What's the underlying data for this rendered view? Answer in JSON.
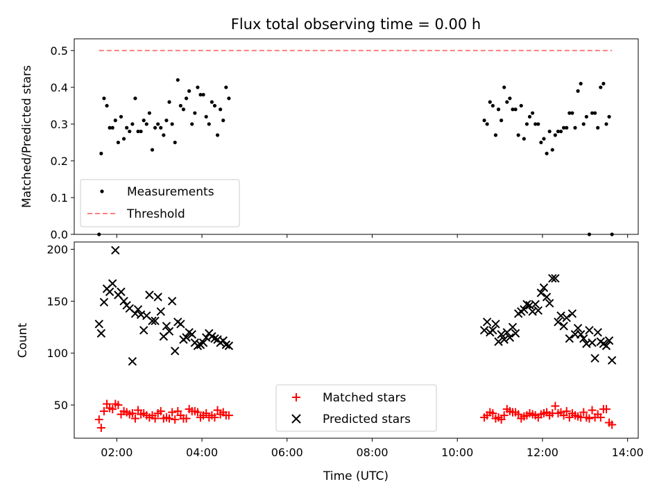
{
  "title": "Flux total observing time = 0.00 h",
  "colors": {
    "matched": "#ff0000",
    "predicted": "#000000",
    "threshold": "#ff7f7f",
    "measurements": "#000000"
  },
  "chart_data": [
    {
      "type": "scatter",
      "title": "Flux total observing time = 0.00 h",
      "ylabel": "Matched/Predicted stars",
      "xlabel": "",
      "xlim": [
        "01:00",
        "14:15"
      ],
      "ylim": [
        0,
        0.5
      ],
      "yticks": [
        "0.0",
        "0.1",
        "0.2",
        "0.3",
        "0.4",
        "0.5"
      ],
      "x_tick_labels_shown": false,
      "legend_position": "lower-left",
      "series": [
        {
          "name": "Measurements",
          "marker": "dot",
          "x": [
            "01:35",
            "01:38",
            "01:42",
            "01:46",
            "01:50",
            "01:54",
            "01:58",
            "02:02",
            "02:06",
            "02:10",
            "02:14",
            "02:18",
            "02:22",
            "02:26",
            "02:30",
            "02:34",
            "02:38",
            "02:42",
            "02:46",
            "02:50",
            "02:54",
            "02:58",
            "03:02",
            "03:06",
            "03:10",
            "03:14",
            "03:18",
            "03:22",
            "03:26",
            "03:30",
            "03:34",
            "03:38",
            "03:42",
            "03:46",
            "03:50",
            "03:54",
            "03:58",
            "04:02",
            "04:06",
            "04:10",
            "04:14",
            "04:18",
            "04:22",
            "04:26",
            "04:30",
            "04:34",
            "04:38",
            "10:38",
            "10:42",
            "10:46",
            "10:50",
            "10:54",
            "10:58",
            "11:02",
            "11:06",
            "11:10",
            "11:14",
            "11:18",
            "11:22",
            "11:26",
            "11:30",
            "11:34",
            "11:38",
            "11:42",
            "11:46",
            "11:50",
            "11:54",
            "11:58",
            "12:02",
            "12:06",
            "12:10",
            "12:14",
            "12:18",
            "12:22",
            "12:26",
            "12:30",
            "12:34",
            "12:38",
            "12:42",
            "12:46",
            "12:50",
            "12:54",
            "12:58",
            "13:02",
            "13:06",
            "13:10",
            "13:14",
            "13:18",
            "13:22",
            "13:26",
            "13:30",
            "13:34",
            "13:38"
          ],
          "values": [
            0.0,
            0.22,
            0.37,
            0.35,
            0.29,
            0.29,
            0.31,
            0.25,
            0.32,
            0.26,
            0.29,
            0.28,
            0.3,
            0.37,
            0.28,
            0.28,
            0.31,
            0.3,
            0.33,
            0.23,
            0.29,
            0.3,
            0.29,
            0.27,
            0.31,
            0.36,
            0.3,
            0.25,
            0.42,
            0.35,
            0.34,
            0.37,
            0.39,
            0.3,
            0.33,
            0.4,
            0.38,
            0.38,
            0.32,
            0.3,
            0.36,
            0.35,
            0.27,
            0.34,
            0.31,
            0.4,
            0.37,
            0.31,
            0.3,
            0.36,
            0.35,
            0.27,
            0.34,
            0.31,
            0.4,
            0.36,
            0.37,
            0.34,
            0.34,
            0.27,
            0.35,
            0.26,
            0.3,
            0.32,
            0.33,
            0.3,
            0.3,
            0.25,
            0.26,
            0.22,
            0.28,
            0.23,
            0.27,
            0.28,
            0.28,
            0.29,
            0.29,
            0.33,
            0.33,
            0.29,
            0.39,
            0.41,
            0.3,
            0.32,
            0.0,
            0.33,
            0.33,
            0.29,
            0.4,
            0.41,
            0.3,
            0.32,
            0.0
          ]
        },
        {
          "name": "Threshold",
          "marker": "dashed-line",
          "x": [
            "01:35",
            "13:38"
          ],
          "values": [
            0.5,
            0.5
          ]
        }
      ]
    },
    {
      "type": "scatter",
      "ylabel": "Count",
      "xlabel": "Time (UTC)",
      "xlim": [
        "01:00",
        "14:15"
      ],
      "ylim": [
        18,
        207
      ],
      "yticks": [
        "50",
        "100",
        "150",
        "200"
      ],
      "xticks": [
        "02:00",
        "04:00",
        "06:00",
        "08:00",
        "10:00",
        "12:00",
        "14:00"
      ],
      "legend_position": "lower-center",
      "series": [
        {
          "name": "Matched stars",
          "marker": "plus",
          "x": [
            "01:35",
            "01:38",
            "01:42",
            "01:46",
            "01:50",
            "01:54",
            "01:58",
            "02:02",
            "02:06",
            "02:10",
            "02:14",
            "02:18",
            "02:22",
            "02:26",
            "02:30",
            "02:34",
            "02:38",
            "02:42",
            "02:46",
            "02:50",
            "02:54",
            "02:58",
            "03:02",
            "03:06",
            "03:10",
            "03:14",
            "03:18",
            "03:22",
            "03:26",
            "03:30",
            "03:34",
            "03:38",
            "03:42",
            "03:46",
            "03:50",
            "03:54",
            "03:58",
            "04:02",
            "04:06",
            "04:10",
            "04:14",
            "04:18",
            "04:22",
            "04:26",
            "04:30",
            "04:34",
            "04:38",
            "10:38",
            "10:42",
            "10:46",
            "10:50",
            "10:54",
            "10:58",
            "11:02",
            "11:06",
            "11:10",
            "11:14",
            "11:18",
            "11:22",
            "11:26",
            "11:30",
            "11:34",
            "11:38",
            "11:42",
            "11:46",
            "11:50",
            "11:54",
            "11:58",
            "12:02",
            "12:06",
            "12:10",
            "12:14",
            "12:18",
            "12:22",
            "12:26",
            "12:30",
            "12:34",
            "12:38",
            "12:42",
            "12:46",
            "12:50",
            "12:54",
            "12:58",
            "13:02",
            "13:06",
            "13:10",
            "13:14",
            "13:18",
            "13:22",
            "13:26",
            "13:30",
            "13:34",
            "13:38"
          ],
          "values": [
            36,
            28,
            44,
            51,
            47,
            46,
            51,
            50,
            41,
            44,
            43,
            41,
            42,
            37,
            45,
            41,
            42,
            40,
            38,
            40,
            37,
            42,
            44,
            37,
            38,
            37,
            43,
            36,
            44,
            40,
            37,
            37,
            46,
            44,
            44,
            43,
            38,
            40,
            42,
            38,
            40,
            38,
            45,
            41,
            43,
            40,
            40,
            38,
            40,
            43,
            42,
            37,
            38,
            36,
            40,
            46,
            44,
            43,
            43,
            41,
            37,
            39,
            40,
            42,
            41,
            40,
            38,
            41,
            42,
            43,
            40,
            42,
            49,
            42,
            43,
            40,
            44,
            38,
            42,
            40,
            39,
            38,
            43,
            38,
            37,
            45,
            38,
            41,
            38,
            46,
            46,
            33,
            31
          ]
        },
        {
          "name": "Predicted stars",
          "marker": "x",
          "x": [
            "01:35",
            "01:38",
            "01:42",
            "01:46",
            "01:50",
            "01:54",
            "01:58",
            "02:02",
            "02:06",
            "02:10",
            "02:14",
            "02:18",
            "02:22",
            "02:26",
            "02:30",
            "02:34",
            "02:38",
            "02:42",
            "02:46",
            "02:50",
            "02:54",
            "02:58",
            "03:02",
            "03:06",
            "03:10",
            "03:14",
            "03:18",
            "03:22",
            "03:26",
            "03:30",
            "03:34",
            "03:38",
            "03:42",
            "03:46",
            "03:50",
            "03:54",
            "03:58",
            "04:02",
            "04:06",
            "04:10",
            "04:14",
            "04:18",
            "04:22",
            "04:26",
            "04:30",
            "04:34",
            "04:38",
            "10:38",
            "10:42",
            "10:46",
            "10:50",
            "10:54",
            "10:58",
            "11:02",
            "11:06",
            "11:10",
            "11:14",
            "11:18",
            "11:22",
            "11:26",
            "11:30",
            "11:34",
            "11:38",
            "11:42",
            "11:46",
            "11:50",
            "11:54",
            "11:58",
            "12:02",
            "12:06",
            "12:10",
            "12:14",
            "12:18",
            "12:22",
            "12:26",
            "12:30",
            "12:34",
            "12:38",
            "12:42",
            "12:46",
            "12:50",
            "12:54",
            "12:58",
            "13:02",
            "13:06",
            "13:10",
            "13:14",
            "13:18",
            "13:22",
            "13:26",
            "13:30",
            "13:34",
            "13:38"
          ],
          "values": [
            128,
            119,
            149,
            162,
            159,
            167,
            199,
            156,
            159,
            150,
            146,
            143,
            92,
            138,
            142,
            137,
            122,
            136,
            156,
            131,
            131,
            154,
            140,
            116,
            126,
            121,
            150,
            102,
            130,
            128,
            113,
            115,
            120,
            118,
            110,
            107,
            108,
            110,
            115,
            119,
            116,
            114,
            113,
            110,
            112,
            108,
            107,
            122,
            130,
            120,
            122,
            128,
            111,
            118,
            113,
            120,
            115,
            125,
            119,
            138,
            140,
            142,
            147,
            146,
            140,
            147,
            141,
            158,
            163,
            154,
            148,
            172,
            172,
            130,
            136,
            126,
            134,
            114,
            138,
            118,
            124,
            118,
            114,
            109,
            122,
            110,
            95,
            120,
            111,
            109,
            107,
            112,
            93
          ]
        }
      ]
    }
  ]
}
